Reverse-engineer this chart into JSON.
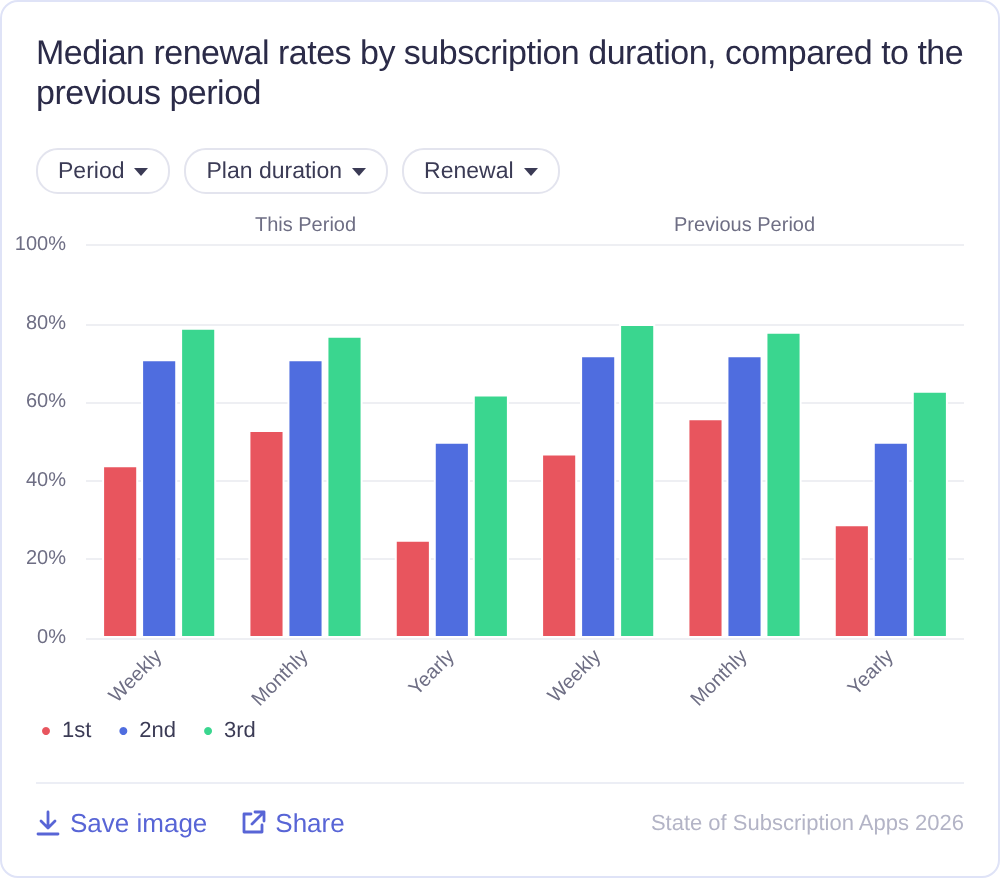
{
  "chart_data": {
    "type": "bar",
    "title": "Median renewal rates by subscription duration, compared to the previous period",
    "categories": [
      "Weekly",
      "Monthly",
      "Yearly",
      "Weekly",
      "Monthly",
      "Yearly"
    ],
    "series": [
      {
        "name": "1st",
        "color": "#e8555e",
        "values": [
          44,
          53,
          25,
          47,
          56,
          29
        ]
      },
      {
        "name": "2nd",
        "color": "#4f6ddf",
        "values": [
          71,
          71,
          50,
          72,
          72,
          50
        ]
      },
      {
        "name": "3rd",
        "color": "#3ad68f",
        "values": [
          79,
          77,
          62,
          80,
          78,
          63
        ]
      }
    ],
    "ylim": [
      0,
      100
    ],
    "yticks": [
      {
        "value": 0,
        "label": "0%"
      },
      {
        "value": 20,
        "label": "20%"
      },
      {
        "value": 40,
        "label": "40%"
      },
      {
        "value": 60,
        "label": "60%"
      },
      {
        "value": 80,
        "label": "80%"
      },
      {
        "value": 100,
        "label": "100%"
      }
    ],
    "grid": "y",
    "legend": "bottom left",
    "annotations": [
      "Period",
      "Plan duration",
      "Renewal",
      "This Period",
      "Previous Period",
      "Save image",
      "Share",
      "State of Subscription Apps 2026"
    ]
  }
}
